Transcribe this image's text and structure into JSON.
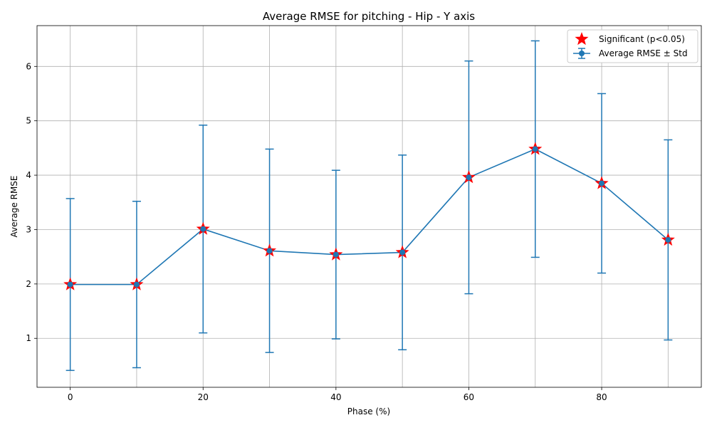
{
  "chart_data": {
    "type": "line",
    "title": "Average RMSE for pitching - Hip - Y axis",
    "xlabel": "Phase (%)",
    "ylabel": "Average RMSE",
    "xlim": [
      -5,
      95
    ],
    "ylim": [
      0.1,
      6.75
    ],
    "xticks": [
      0,
      20,
      40,
      60,
      80
    ],
    "yticks": [
      1,
      2,
      3,
      4,
      5,
      6
    ],
    "grid": true,
    "legend_position": "top-right",
    "series": [
      {
        "name": "Average RMSE ± Std",
        "color": "#1f77b4",
        "x": [
          0,
          10,
          20,
          30,
          40,
          50,
          60,
          70,
          80,
          90
        ],
        "y": [
          1.99,
          1.99,
          3.01,
          2.61,
          2.54,
          2.58,
          3.96,
          4.48,
          3.85,
          2.81
        ],
        "std": [
          1.58,
          1.53,
          1.91,
          1.87,
          1.55,
          1.79,
          2.14,
          1.99,
          1.65,
          1.84
        ]
      }
    ],
    "significant": {
      "name": "Significant (p<0.05)",
      "color": "#ff0000",
      "x": [
        0,
        10,
        20,
        30,
        40,
        50,
        60,
        70,
        80,
        90
      ],
      "y": [
        1.99,
        1.99,
        3.01,
        2.61,
        2.54,
        2.58,
        3.96,
        4.48,
        3.85,
        2.81
      ]
    }
  }
}
